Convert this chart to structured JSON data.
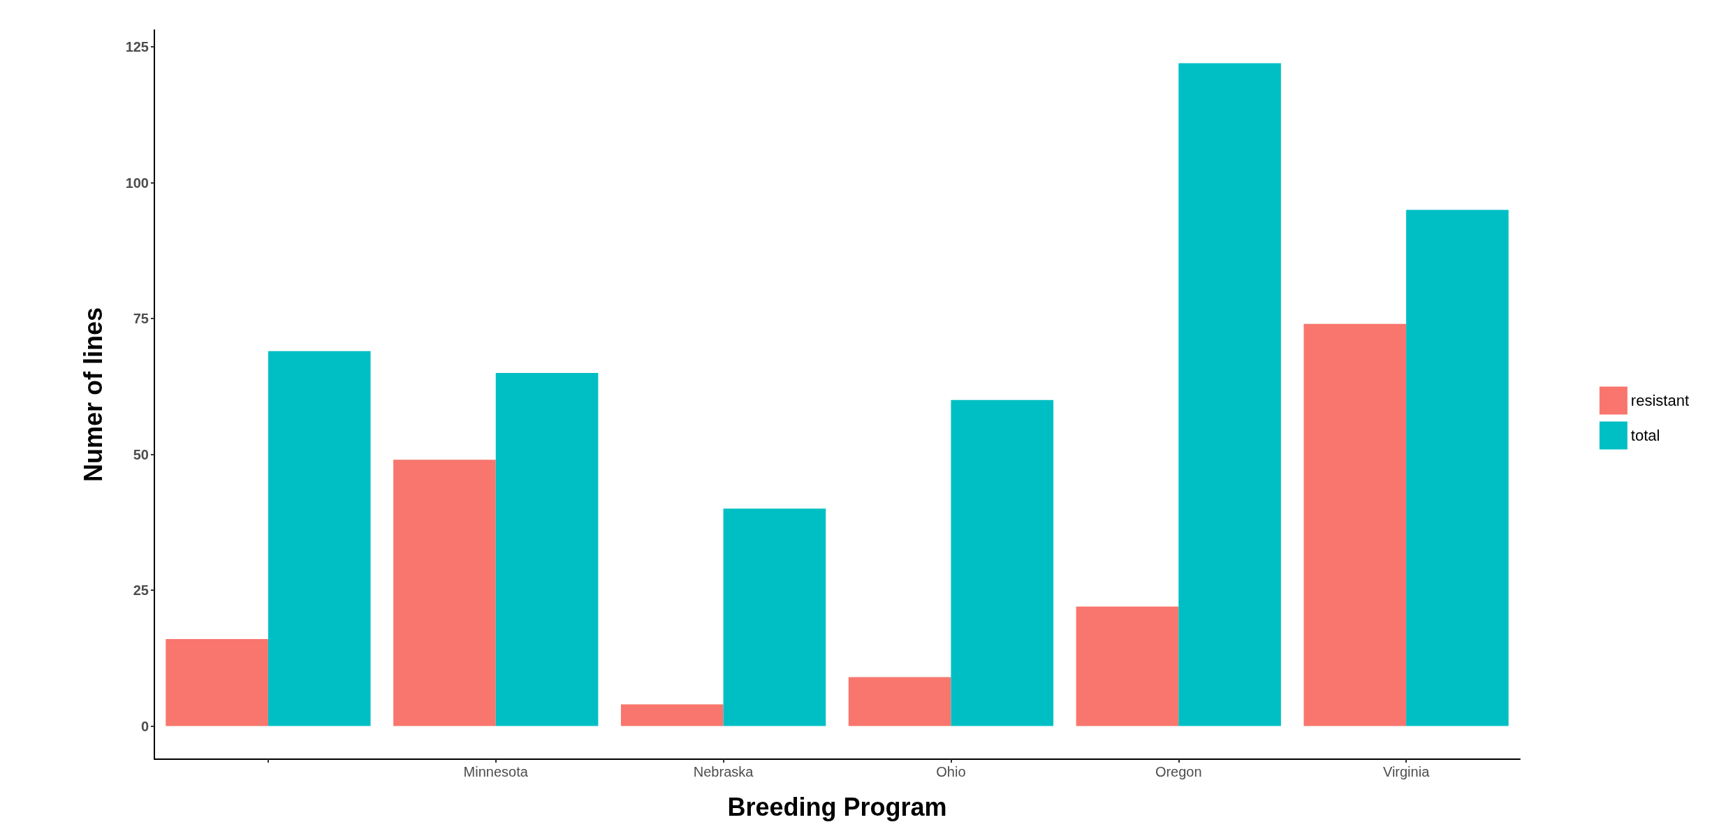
{
  "chart_data": {
    "type": "bar",
    "xlabel": "Breeding Program",
    "ylabel": "Numer of lines",
    "categories": [
      null,
      "Minnesota",
      "Nebraska",
      "Ohio",
      "Oregon",
      "Virginia"
    ],
    "series": [
      {
        "name": "resistant",
        "color": "#f8766d",
        "values": [
          16,
          49,
          4,
          9,
          22,
          74
        ]
      },
      {
        "name": "total",
        "color": "#00bfc4",
        "values": [
          69,
          65,
          40,
          60,
          122,
          95
        ]
      }
    ],
    "ylim": [
      -6.1,
      128.1
    ],
    "yticks": [
      0,
      25,
      50,
      75,
      100,
      125
    ],
    "grid": false,
    "legend": "right"
  }
}
